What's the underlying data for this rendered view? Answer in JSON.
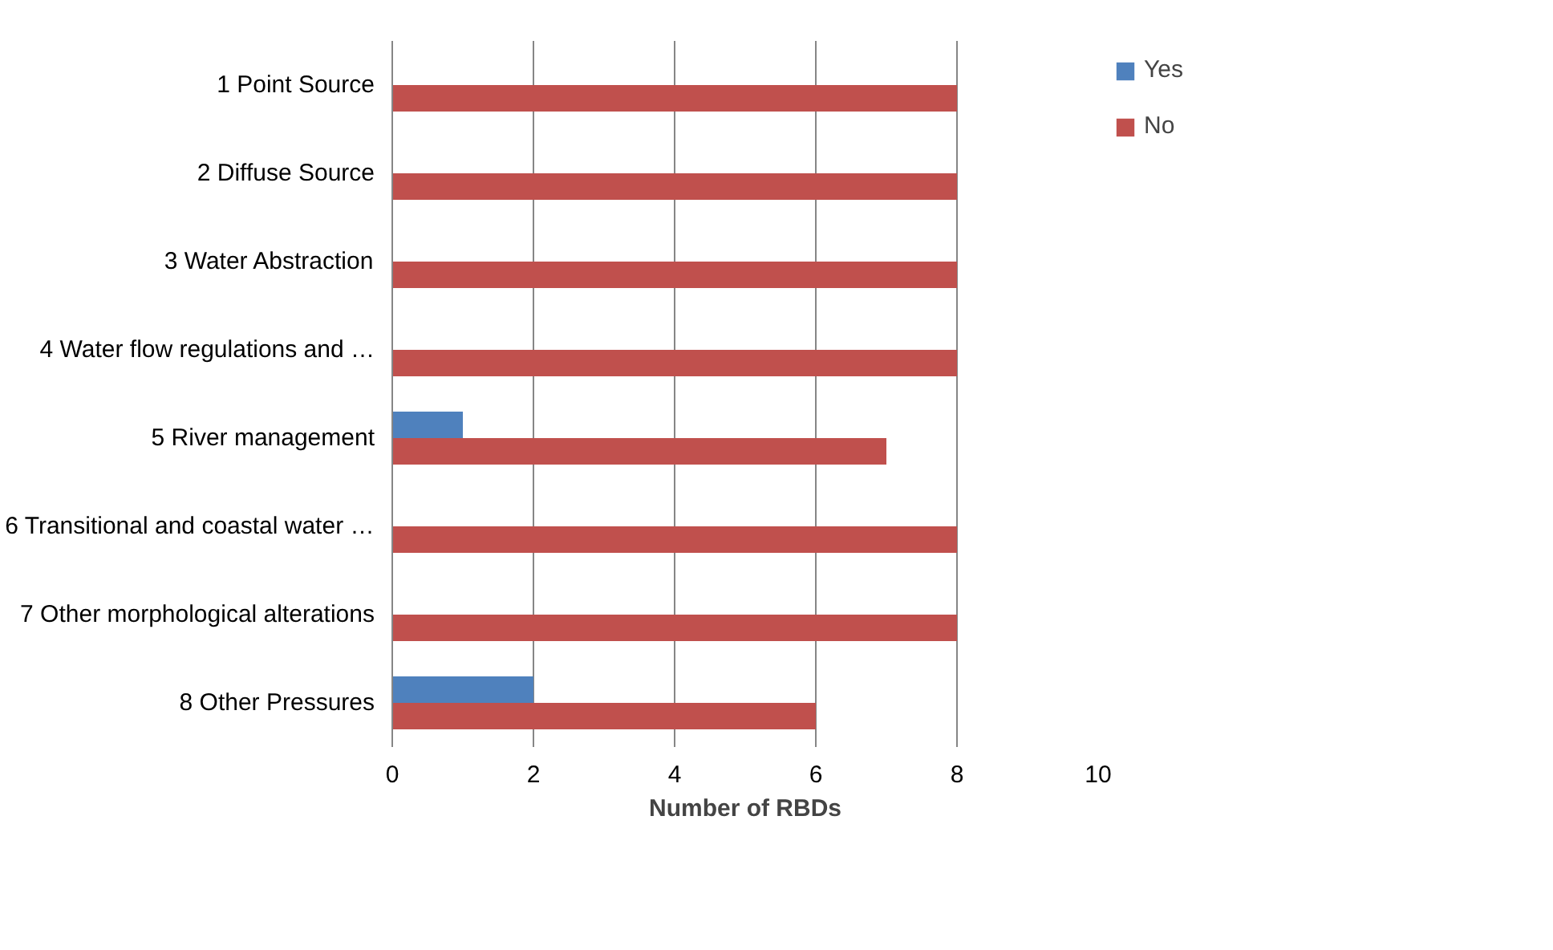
{
  "chart_data": {
    "type": "bar",
    "orientation": "horizontal",
    "xlabel": "Number of RBDs",
    "categories": [
      "1 Point Source",
      "2 Diffuse Source",
      "3 Water Abstraction",
      "4 Water flow regulations and …",
      "5 River management",
      "6 Transitional and coastal water …",
      "7 Other morphological alterations",
      "8 Other Pressures"
    ],
    "series": [
      {
        "name": "Yes",
        "color": "#4f81bd",
        "values": [
          0,
          0,
          0,
          0,
          1,
          0,
          0,
          2
        ]
      },
      {
        "name": "No",
        "color": "#c0504d",
        "values": [
          8,
          8,
          8,
          8,
          7,
          8,
          8,
          6
        ]
      }
    ],
    "xlim": [
      0,
      10
    ],
    "xticks": [
      0,
      2,
      4,
      6,
      8,
      10
    ],
    "grid": "x",
    "legend": "right"
  }
}
